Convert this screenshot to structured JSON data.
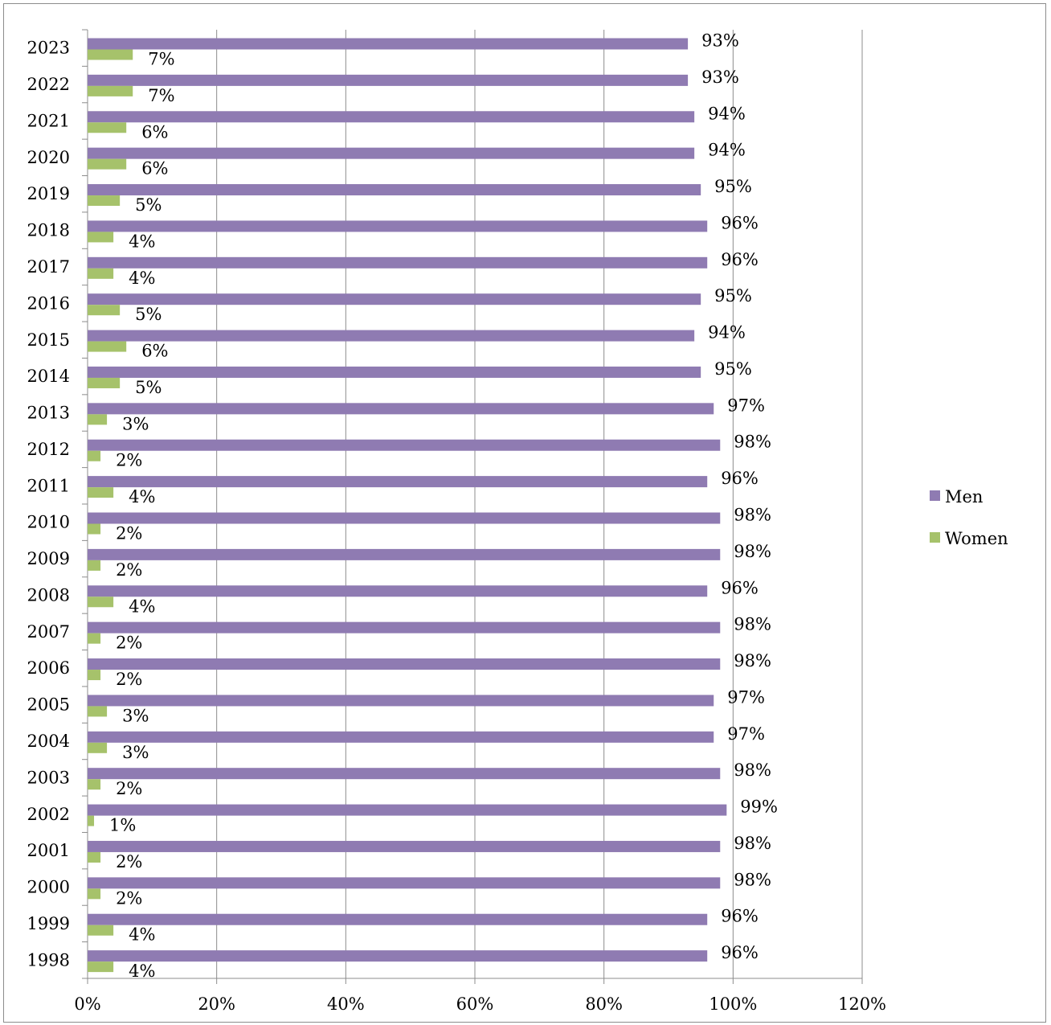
{
  "chart_data": {
    "type": "bar",
    "orientation": "horizontal",
    "categories": [
      "1998",
      "1999",
      "2000",
      "2001",
      "2002",
      "2003",
      "2004",
      "2005",
      "2006",
      "2007",
      "2008",
      "2009",
      "2010",
      "2011",
      "2012",
      "2013",
      "2014",
      "2015",
      "2016",
      "2017",
      "2018",
      "2019",
      "2020",
      "2021",
      "2022",
      "2023"
    ],
    "series": [
      {
        "name": "Men",
        "color": "#8f7bb2",
        "values": [
          96,
          96,
          98,
          98,
          99,
          98,
          97,
          97,
          98,
          98,
          96,
          98,
          98,
          96,
          98,
          97,
          95,
          94,
          95,
          96,
          96,
          95,
          94,
          94,
          93,
          93
        ],
        "labels": [
          "96%",
          "96%",
          "98%",
          "98%",
          "99%",
          "98%",
          "97%",
          "97%",
          "98%",
          "98%",
          "96%",
          "98%",
          "98%",
          "96%",
          "98%",
          "97%",
          "95%",
          "94%",
          "95%",
          "96%",
          "96%",
          "95%",
          "94%",
          "94%",
          "93%",
          "93%"
        ]
      },
      {
        "name": "Women",
        "color": "#a6c26b",
        "values": [
          4,
          4,
          2,
          2,
          1,
          2,
          3,
          3,
          2,
          2,
          4,
          2,
          2,
          4,
          2,
          3,
          5,
          6,
          5,
          4,
          4,
          5,
          6,
          6,
          7,
          7
        ],
        "labels": [
          "4%",
          "4%",
          "2%",
          "2%",
          "1%",
          "2%",
          "3%",
          "3%",
          "2%",
          "2%",
          "4%",
          "2%",
          "2%",
          "4%",
          "2%",
          "3%",
          "5%",
          "6%",
          "5%",
          "4%",
          "4%",
          "5%",
          "6%",
          "6%",
          "7%",
          "7%"
        ]
      }
    ],
    "xlim": [
      0,
      120
    ],
    "x_ticks": [
      0,
      20,
      40,
      60,
      80,
      100,
      120
    ],
    "x_tick_labels": [
      "0%",
      "20%",
      "40%",
      "60%",
      "80%",
      "100%",
      "120%"
    ],
    "grid": true,
    "gridline_color": "#8c8c8c",
    "legend_position": "right",
    "title": "",
    "xlabel": "",
    "ylabel": ""
  }
}
